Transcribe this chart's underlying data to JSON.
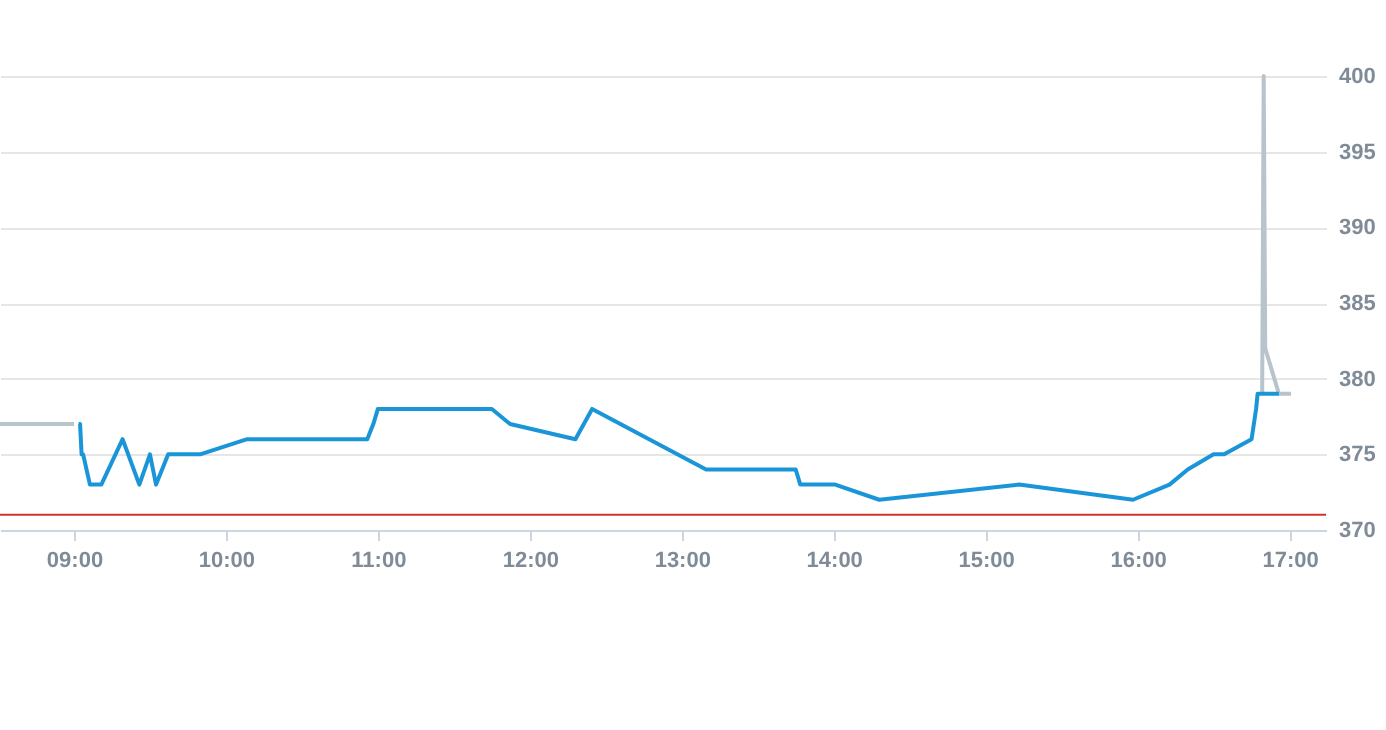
{
  "chart_data": {
    "type": "line",
    "xlim": [
      8.513,
      17.24
    ],
    "ylim": [
      370,
      400
    ],
    "xticks": [
      {
        "value": 9,
        "label": "09:00"
      },
      {
        "value": 10,
        "label": "10:00"
      },
      {
        "value": 11,
        "label": "11:00"
      },
      {
        "value": 12,
        "label": "12:00"
      },
      {
        "value": 13,
        "label": "13:00"
      },
      {
        "value": 14,
        "label": "14:00"
      },
      {
        "value": 15,
        "label": "15:00"
      },
      {
        "value": 16,
        "label": "16:00"
      },
      {
        "value": 17,
        "label": "17:00"
      }
    ],
    "yticks": [
      370,
      375,
      380,
      385,
      390,
      395,
      400
    ],
    "grid": "y",
    "marker": "none",
    "line_style": "solid",
    "series": [
      {
        "color": "#b8c4cc",
        "x": [
          8.513,
          9.0,
          9.01,
          16.82,
          16.83,
          16.84,
          16.93,
          17.01
        ],
        "values": [
          377,
          377,
          null,
          379,
          400,
          382,
          379,
          379
        ]
      },
      {
        "color": "#1a96d8",
        "x": [
          9.03,
          9.04,
          9.05,
          9.06,
          9.105,
          9.18,
          9.32,
          9.43,
          9.5,
          9.54,
          9.62,
          9.83,
          10.14,
          10.93,
          10.97,
          11.0,
          11.75,
          11.87,
          12.3,
          12.41,
          13.16,
          13.75,
          13.78,
          14.01,
          14.3,
          15.22,
          15.97,
          16.21,
          16.33,
          16.5,
          16.57,
          16.75,
          16.78,
          16.79,
          16.93
        ],
        "values": [
          377,
          377,
          375,
          375,
          373,
          373,
          376,
          373,
          375,
          373,
          375,
          375,
          376,
          376,
          377,
          378,
          378,
          377,
          376,
          378,
          374,
          374,
          373,
          373,
          372,
          373,
          372,
          373,
          374,
          375,
          375,
          376,
          378,
          379,
          379
        ]
      }
    ],
    "ref_lines": [
      {
        "axis": "y",
        "value": 371,
        "color": "#d0352b"
      }
    ]
  }
}
